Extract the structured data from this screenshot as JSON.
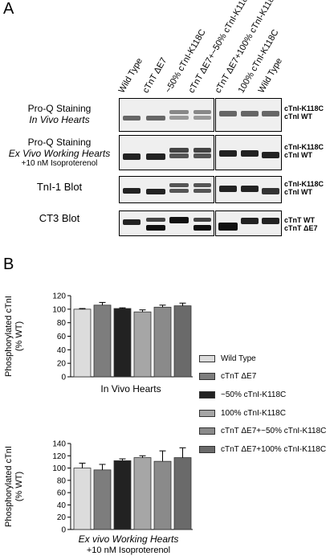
{
  "panel_a": {
    "letter": "A",
    "lane_labels": [
      "Wild Type",
      "cTnT ΔE7",
      "~50% cTnI-K118C",
      "cTnT ΔE7+~50% cTnI-K118C",
      "cTnT ΔE7+100% cTnI-K118C",
      "100% cTnI-K118C",
      "Wild Type"
    ],
    "rows": [
      {
        "label_lines": [
          "Pro-Q Staining",
          "In Vivo Hearts"
        ],
        "right_labels": [
          "cTnI-K118C",
          "cTnI WT"
        ]
      },
      {
        "label_lines": [
          "Pro-Q Staining",
          "Ex Vivo Working Hearts",
          "+10 nM Isoproterenol"
        ],
        "right_labels": [
          "cTnI-K118C",
          "cTnI WT"
        ]
      },
      {
        "label_lines": [
          "TnI-1 Blot"
        ],
        "right_labels": [
          "cTnI-K118C",
          "cTnI WT"
        ]
      },
      {
        "label_lines": [
          "CT3 Blot"
        ],
        "right_labels": [
          "cTnT WT",
          "cTnT ΔE7"
        ]
      }
    ]
  },
  "panel_b": {
    "letter": "B",
    "legend": [
      {
        "label": "Wild Type",
        "color": "#dcdcdc"
      },
      {
        "label": "cTnT ΔE7",
        "color": "#7d7d7d"
      },
      {
        "label": "~50% cTnI-K118C",
        "color": "#222222"
      },
      {
        "label": "100% cTnI-K118C",
        "color": "#a6a6a6"
      },
      {
        "label": "cTnT ΔE7+~50% cTnI-K118C",
        "color": "#8a8a8a"
      },
      {
        "label": "cTnT ΔE7+100% cTnI-K118C",
        "color": "#6a6a6a"
      }
    ]
  },
  "chart_data": [
    {
      "type": "bar",
      "title": "In Vivo Hearts",
      "subtitle": "",
      "ylabel": "Phosphorylated cTnI (% WT)",
      "ylabel_lines": [
        "Phosphorylated cTnI",
        "(% WT)"
      ],
      "ylim": [
        0,
        120
      ],
      "yticks": [
        "0",
        "20",
        "40",
        "60",
        "80",
        "100",
        "120"
      ],
      "categories": [
        "Wild Type",
        "cTnT ΔE7",
        "~50% cTnI-K118C",
        "100% cTnI-K118C",
        "cTnT ΔE7+~50% cTnI-K118C",
        "cTnT ΔE7+100% cTnI-K118C"
      ],
      "values": [
        100,
        106,
        101,
        96,
        103,
        105
      ],
      "errors": [
        1,
        4,
        1,
        3,
        3,
        4
      ]
    },
    {
      "type": "bar",
      "title": "Ex vivo Working Hearts",
      "subtitle": "+10 nM Isoproterenol",
      "ylabel": "Phosphorylated cTnI (% WT)",
      "ylabel_lines": [
        "Phosphorylated cTnI",
        "(% WT)"
      ],
      "ylim": [
        0,
        140
      ],
      "yticks": [
        "0",
        "20",
        "40",
        "60",
        "80",
        "100",
        "120",
        "140"
      ],
      "categories": [
        "Wild Type",
        "cTnT ΔE7",
        "~50% cTnI-K118C",
        "100% cTnI-K118C",
        "cTnT ΔE7+~50% cTnI-K118C",
        "cTnT ΔE7+100% cTnI-K118C"
      ],
      "values": [
        100,
        97,
        112,
        117,
        111,
        117
      ],
      "errors": [
        8,
        9,
        3,
        3,
        17,
        16
      ]
    }
  ]
}
